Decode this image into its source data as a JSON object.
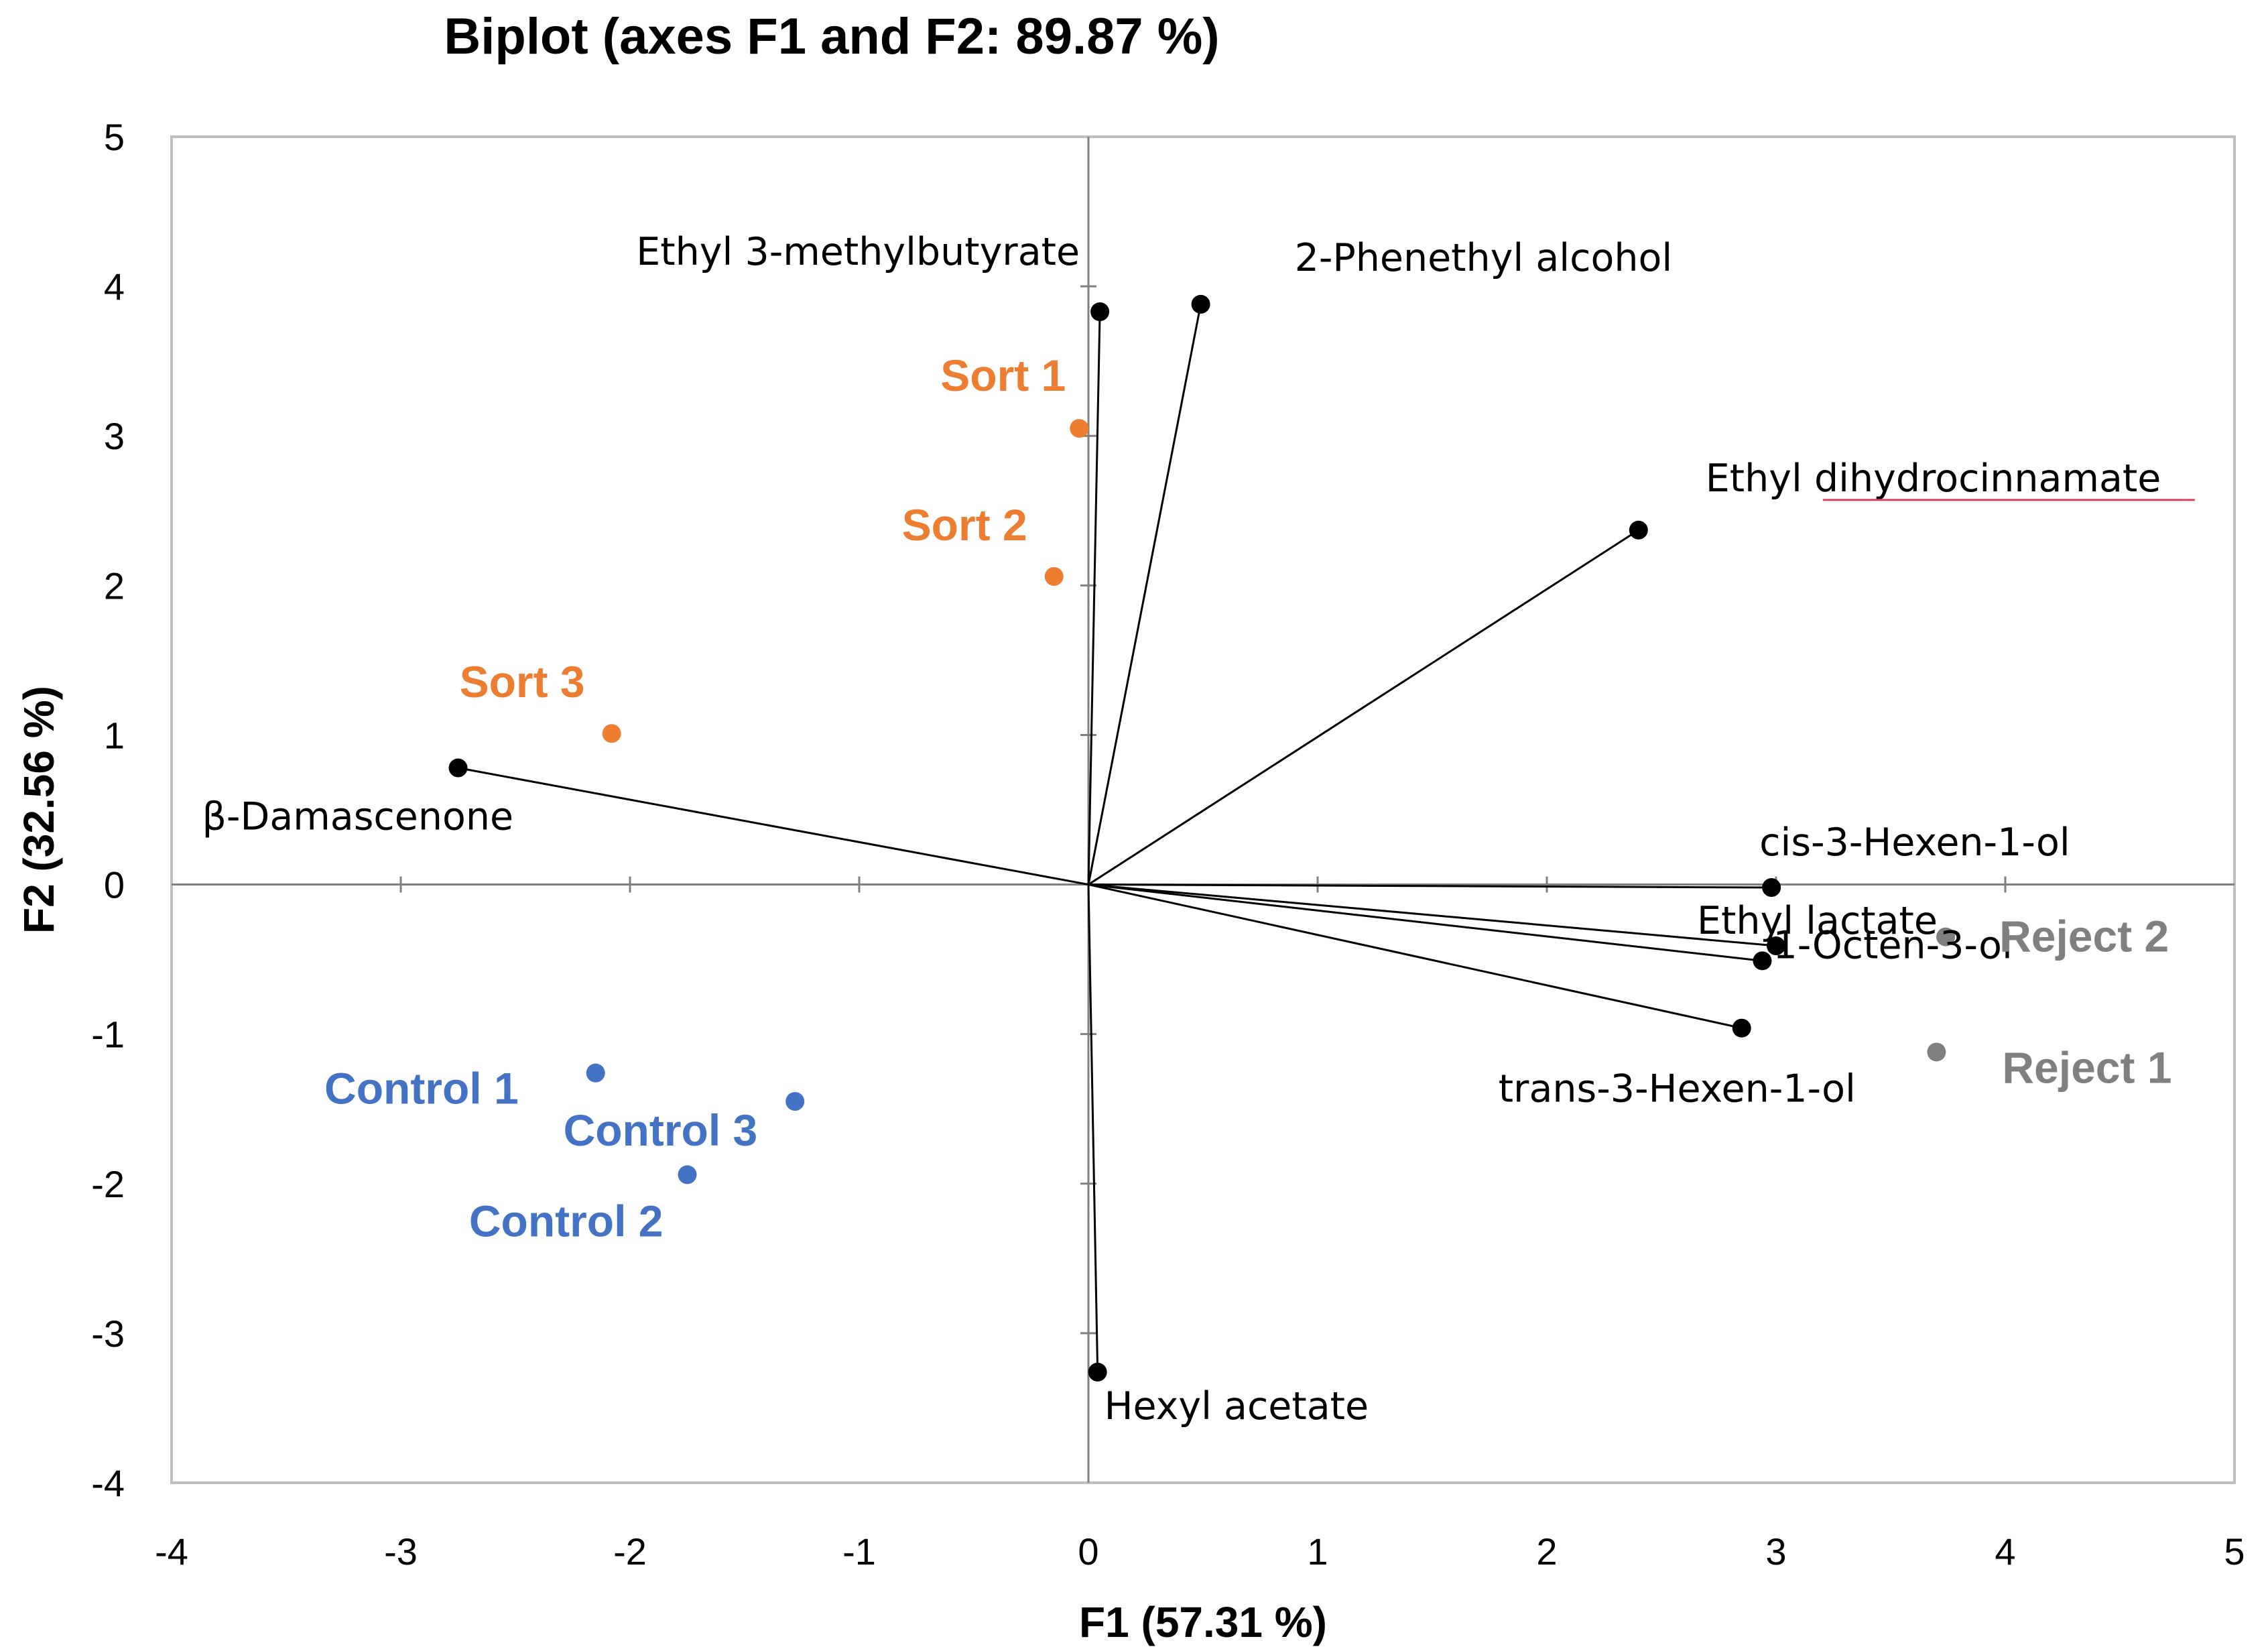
{
  "chart_data": {
    "type": "scatter",
    "subtype": "biplot",
    "title": "Biplot (axes F1 and F2: 89.87 %)",
    "xlabel": "F1 (57.31 %)",
    "ylabel": "F2 (32.56 %)",
    "xlim": [
      -4,
      5
    ],
    "ylim": [
      -4,
      5
    ],
    "xticks": [
      -4,
      -3,
      -2,
      -1,
      0,
      1,
      2,
      3,
      4,
      5
    ],
    "yticks": [
      -4,
      -3,
      -2,
      -1,
      0,
      1,
      2,
      3,
      4,
      5
    ],
    "grid": false,
    "colors": {
      "variables": "#000000",
      "sort": "#ED7D31",
      "control": "#4472C4",
      "reject": "#808080",
      "frame": "#BFBFBF",
      "axis": "#808080"
    },
    "variables": [
      {
        "name": "Ethyl 3-methylbutyrate",
        "x": 0.05,
        "y": 3.83
      },
      {
        "name": "2-Phenethyl alcohol",
        "x": 0.49,
        "y": 3.88
      },
      {
        "name": "Ethyl dihydrocinnamate",
        "x": 2.4,
        "y": 2.37
      },
      {
        "name": "β-Damascenone",
        "x": -2.75,
        "y": 0.78
      },
      {
        "name": "cis-3-Hexen-1-ol",
        "x": 2.98,
        "y": -0.02
      },
      {
        "name": "Ethyl lactate",
        "x": 3.0,
        "y": -0.41
      },
      {
        "name": "1-Octen-3-ol",
        "x": 2.94,
        "y": -0.51
      },
      {
        "name": "trans-3-Hexen-1-ol",
        "x": 2.85,
        "y": -0.96
      },
      {
        "name": "Hexyl acetate",
        "x": 0.04,
        "y": -3.26
      }
    ],
    "observations": [
      {
        "name": "Sort 1",
        "group": "sort",
        "x": -0.04,
        "y": 3.05
      },
      {
        "name": "Sort 2",
        "group": "sort",
        "x": -0.15,
        "y": 2.06
      },
      {
        "name": "Sort 3",
        "group": "sort",
        "x": -2.08,
        "y": 1.01
      },
      {
        "name": "Control 1",
        "group": "control",
        "x": -2.15,
        "y": -1.26
      },
      {
        "name": "Control 2",
        "group": "control",
        "x": -1.75,
        "y": -1.94
      },
      {
        "name": "Control 3",
        "group": "control",
        "x": -1.28,
        "y": -1.45
      },
      {
        "name": "Reject 1",
        "group": "reject",
        "x": 3.7,
        "y": -1.12
      },
      {
        "name": "Reject 2",
        "group": "reject",
        "x": 3.74,
        "y": -0.35
      }
    ]
  }
}
